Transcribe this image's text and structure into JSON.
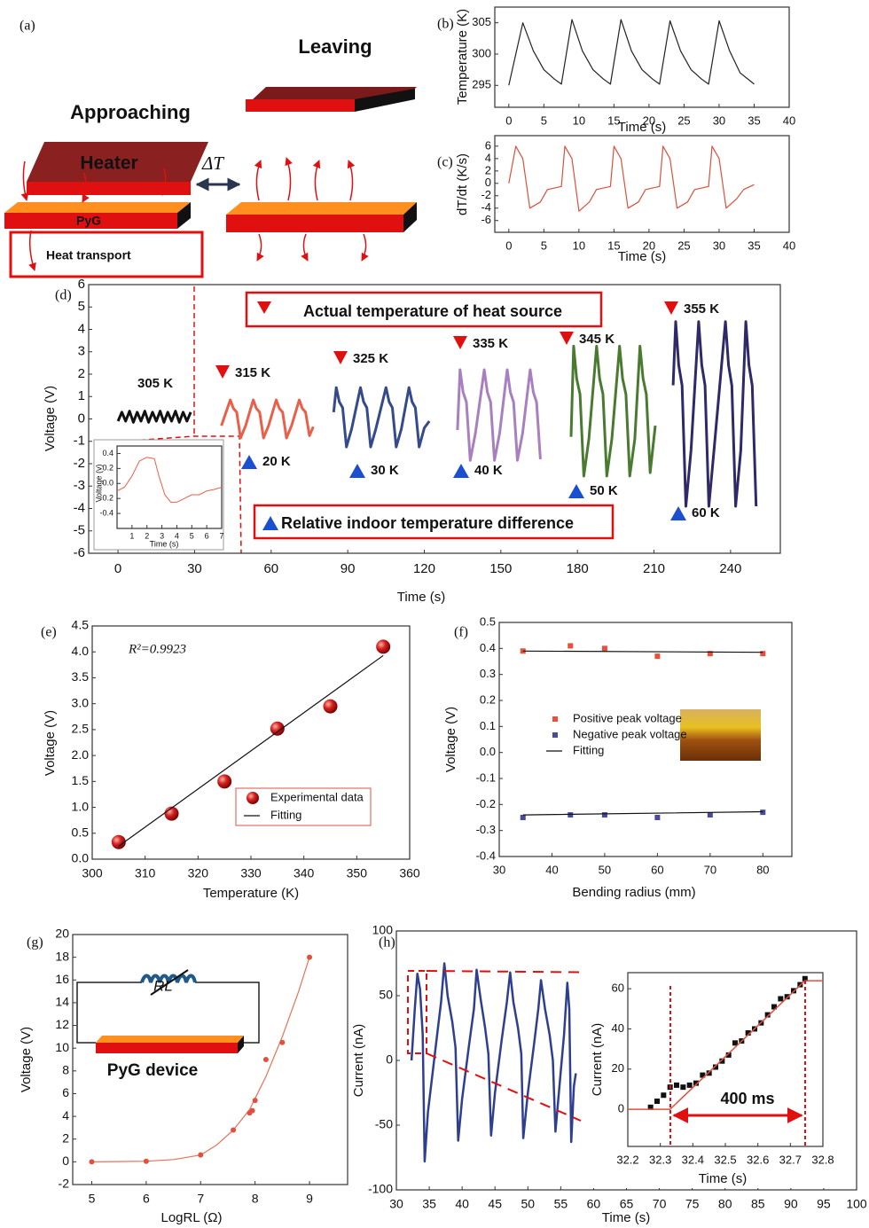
{
  "diagram": {
    "panel_label": "(a)",
    "labels": [
      "Leaving",
      "Approaching",
      "Heater",
      "ΔT",
      "PyG",
      "Heat transport"
    ]
  },
  "chart_data": [
    {
      "type": "line",
      "panel_label": "(b)",
      "x_label": "Time (s)",
      "y_label": "Temperature (K)",
      "xlim": [
        -2,
        40
      ],
      "ylim": [
        291.5,
        307.5
      ],
      "xticks": [
        0,
        5,
        10,
        15,
        20,
        25,
        30,
        35,
        40
      ],
      "yticks": [
        295,
        300,
        305
      ],
      "series": [
        {
          "color": "#222222",
          "style": "line",
          "x": [
            0,
            2,
            3.5,
            5,
            6.5,
            7.5,
            9,
            10.5,
            12,
            13.5,
            14.5,
            16,
            17.5,
            19,
            20.5,
            21.5,
            23,
            24.5,
            26,
            27.5,
            28.5,
            30,
            31.5,
            33,
            35
          ],
          "values": [
            295,
            305,
            300.5,
            297.5,
            296,
            295.2,
            305.5,
            300.5,
            297.5,
            296,
            295.2,
            305.5,
            300.5,
            297.5,
            296,
            295.2,
            305.3,
            300.5,
            297.5,
            296,
            295.2,
            305.3,
            300.5,
            297,
            295.2
          ]
        }
      ]
    },
    {
      "type": "line",
      "panel_label": "(c)",
      "x_label": "Time (s)",
      "y_label": "dT/dt (K/s)",
      "xlim": [
        -2,
        40
      ],
      "ylim": [
        -7.9,
        7.7
      ],
      "xticks": [
        0,
        5,
        10,
        15,
        20,
        25,
        30,
        35,
        40
      ],
      "yticks": [
        -6,
        -4,
        -2,
        0,
        2,
        4,
        6
      ],
      "series": [
        {
          "color": "#d9503c",
          "style": "line",
          "x": [
            0,
            1,
            2,
            3,
            4.5,
            5.5,
            7.5,
            8,
            9,
            10,
            11.5,
            12.5,
            14.5,
            15,
            16,
            17,
            18.5,
            19.5,
            21.5,
            22,
            23,
            24,
            25.5,
            26.5,
            28.5,
            29,
            30,
            31,
            32.5,
            33.5,
            35
          ],
          "values": [
            0,
            6,
            4,
            -4,
            -3,
            -1,
            -0.5,
            6,
            4,
            -4.5,
            -3,
            -1,
            -0.5,
            6,
            4,
            -4,
            -3,
            -1,
            -0.5,
            6,
            4,
            -4,
            -3,
            -1,
            -0.5,
            6,
            4,
            -4,
            -2.5,
            -1,
            -0.2
          ]
        }
      ]
    },
    {
      "type": "line",
      "panel_label": "(d)",
      "x_label": "Time (s)",
      "y_label": "Voltage (V)",
      "xlim": [
        -11.5,
        259.5
      ],
      "ylim": [
        -6,
        6
      ],
      "xticks": [
        0,
        30,
        60,
        90,
        120,
        150,
        180,
        210,
        240
      ],
      "yticks": [
        -6,
        -5,
        -4,
        -3,
        -2,
        -1,
        0,
        1,
        2,
        3,
        4,
        5,
        6
      ],
      "annotations": [
        "Actual temperature of heat source",
        "Relative indoor temperature difference",
        "20 K",
        "30 K",
        "40 K",
        "50 K",
        "60 K"
      ],
      "series": [
        {
          "name": "305 K",
          "color": "#111111",
          "style": "line",
          "x": [
            0,
            1.5,
            3,
            4.5,
            6,
            7.5,
            9,
            10.5,
            12,
            13.5,
            15,
            16.5,
            18,
            19.5,
            21,
            22.5,
            24,
            25.5,
            27,
            28.5
          ],
          "values": [
            -0.1,
            0.3,
            -0.1,
            0.35,
            -0.15,
            0.3,
            -0.1,
            0.35,
            -0.15,
            0.3,
            -0.1,
            0.35,
            -0.15,
            0.3,
            -0.1,
            0.35,
            -0.15,
            0.3,
            -0.1,
            0.3
          ]
        },
        {
          "name": "315 K",
          "color": "#e8604a",
          "style": "line",
          "x": [
            40.5,
            44,
            45.2,
            46.5,
            48,
            50,
            53,
            54.2,
            55.5,
            57,
            59,
            62,
            63.2,
            64.5,
            66,
            68,
            71,
            72.2,
            73.5,
            75,
            76.5
          ],
          "values": [
            -0.3,
            0.85,
            0.47,
            0.3,
            -0.85,
            -0.3,
            0.85,
            0.47,
            0.3,
            -0.85,
            -0.3,
            0.85,
            0.47,
            0.3,
            -0.85,
            -0.3,
            0.85,
            0.47,
            0.3,
            -0.75,
            -0.35
          ]
        },
        {
          "name": "325 K",
          "color": "#354a8a",
          "style": "line",
          "x": [
            84.5,
            85.5,
            86.7,
            88,
            89.5,
            91.5,
            95,
            96.2,
            97.5,
            99,
            101,
            105,
            106.2,
            107.5,
            109,
            111,
            114,
            115.2,
            116.5,
            118,
            120,
            122
          ],
          "values": [
            0.3,
            1.4,
            0.77,
            0.5,
            -1.25,
            -0.45,
            1.4,
            0.77,
            0.5,
            -1.25,
            -0.45,
            1.4,
            0.77,
            0.5,
            -1.25,
            -0.45,
            1.4,
            0.77,
            0.5,
            -1.25,
            -0.4,
            -0.1
          ]
        },
        {
          "name": "335 K",
          "color": "#a87fbf",
          "style": "line",
          "x": [
            133,
            134,
            135.2,
            136.5,
            138,
            140,
            143.5,
            144.7,
            146,
            147.5,
            149.5,
            152.5,
            153.7,
            155,
            156.5,
            158.5,
            161.5,
            162.7,
            164,
            165.5
          ],
          "values": [
            -0.5,
            2.2,
            1.2,
            0.75,
            -1.85,
            -0.65,
            2.2,
            1.2,
            0.75,
            -1.85,
            -0.65,
            2.2,
            1.2,
            0.75,
            -1.85,
            -0.65,
            2.2,
            1.2,
            0.75,
            -1.8
          ]
        },
        {
          "name": "345 K",
          "color": "#4a7a30",
          "style": "line",
          "x": [
            177.5,
            178.5,
            179.7,
            181,
            182.5,
            184.5,
            187.5,
            188.7,
            190,
            191.5,
            193.5,
            196.5,
            197.7,
            199,
            200.5,
            202.5,
            204.5,
            205.7,
            207,
            208.5,
            210.5
          ],
          "values": [
            -0.8,
            3.25,
            1.8,
            1.1,
            -2.55,
            -0.9,
            3.25,
            1.8,
            1.1,
            -2.55,
            -0.9,
            3.25,
            1.8,
            1.1,
            -2.55,
            -0.9,
            3.25,
            1.8,
            1.1,
            -2.4,
            -0.3
          ]
        },
        {
          "name": "355 K",
          "color": "#2e2a6a",
          "style": "line",
          "x": [
            217.5,
            218.5,
            219.7,
            221,
            222.5,
            224.5,
            227.5,
            228.7,
            230,
            231.5,
            233.5,
            238,
            239.2,
            240.5,
            242,
            244,
            246,
            247.2,
            248.5,
            250
          ],
          "values": [
            1.5,
            4.35,
            2.4,
            1.5,
            -3.9,
            -1.4,
            4.35,
            2.4,
            1.5,
            -3.9,
            -1.4,
            4.35,
            2.4,
            1.5,
            -3.9,
            -1.4,
            4.35,
            2.4,
            1.5,
            -3.9
          ]
        }
      ]
    },
    {
      "type": "line",
      "x_label": "Time (s)",
      "y_label": "Voltage (v)",
      "xlim": [
        0,
        7
      ],
      "ylim": [
        -0.6,
        0.5
      ],
      "xticks": [
        1,
        2,
        3,
        4,
        5,
        6,
        7
      ],
      "yticks": [
        0.4,
        0.2,
        {
          "value": 0,
          "label": "0.0"
        },
        -0.2,
        -0.4
      ],
      "series": [
        {
          "color": "#e8604a",
          "style": "line",
          "x": [
            0,
            0.5,
            1,
            1.5,
            2,
            2.5,
            2.8,
            3.2,
            3.6,
            4,
            4.5,
            5,
            5.5,
            6,
            6.5,
            7
          ],
          "values": [
            -0.1,
            -0.05,
            0.1,
            0.3,
            0.35,
            0.33,
            0.1,
            -0.15,
            -0.25,
            -0.25,
            -0.2,
            -0.15,
            -0.15,
            -0.1,
            -0.08,
            -0.05
          ]
        }
      ]
    },
    {
      "type": "scatter",
      "panel_label": "(e)",
      "x_label": "Temperature (K)",
      "y_label": "Voltage (V)",
      "xlim": [
        300,
        360
      ],
      "ylim": [
        0,
        4.5
      ],
      "xticks": [
        300,
        310,
        320,
        330,
        340,
        350,
        360
      ],
      "yticks": [
        {
          "value": 0,
          "label": "0.0"
        },
        0.5,
        {
          "value": 1,
          "label": "1.0"
        },
        1.5,
        {
          "value": 2,
          "label": "2.0"
        },
        2.5,
        {
          "value": 3,
          "label": "3.0"
        },
        3.5,
        {
          "value": 4,
          "label": "4.0"
        },
        4.5
      ],
      "legend": true,
      "annotations": [
        "R²=0.9923"
      ],
      "series": [
        {
          "name": "Experimental data",
          "color": "#d42020",
          "style": "sphere",
          "x": [
            305,
            315,
            325,
            335,
            345,
            355
          ],
          "values": [
            0.33,
            0.88,
            1.5,
            2.52,
            2.95,
            4.1
          ]
        },
        {
          "name": "Fitting",
          "color": "#111111",
          "style": "line",
          "x": [
            305,
            355
          ],
          "values": [
            0.25,
            3.93
          ]
        }
      ]
    },
    {
      "type": "scatter",
      "panel_label": "(f)",
      "x_label": "Bending radius (mm)",
      "y_label": "Voltage (V)",
      "xlim": [
        30,
        85.5
      ],
      "ylim": [
        -0.4,
        0.5
      ],
      "xticks": [
        30,
        40,
        50,
        60,
        70,
        80
      ],
      "yticks": [
        -0.4,
        -0.3,
        -0.2,
        -0.1,
        {
          "value": 0,
          "label": "0.0"
        },
        0.1,
        0.2,
        0.3,
        0.4,
        0.5
      ],
      "legend": true,
      "series": [
        {
          "name": "Positive peak voltage",
          "color": "#e8503a",
          "style": "square",
          "x": [
            34.5,
            43.5,
            50,
            60,
            70,
            80
          ],
          "values": [
            0.39,
            0.41,
            0.4,
            0.37,
            0.38,
            0.38
          ]
        },
        {
          "name": "Negative peak voltage",
          "color": "#4a4a9a",
          "style": "square",
          "x": [
            34.5,
            43.5,
            50,
            60,
            70,
            80
          ],
          "values": [
            -0.25,
            -0.24,
            -0.24,
            -0.25,
            -0.24,
            -0.23
          ]
        },
        {
          "name": "Fitting",
          "color": "#111111",
          "style": "line",
          "x": [
            34.5,
            80,
            null,
            34.5,
            80
          ],
          "values": [
            0.39,
            0.385,
            null,
            -0.24,
            -0.228
          ]
        }
      ]
    },
    {
      "type": "scatter",
      "panel_label": "(g)",
      "x_label": "LogRL (Ω)",
      "y_label": "Voltage (V)",
      "xlim": [
        4.65,
        9.7
      ],
      "ylim": [
        -2,
        20
      ],
      "xticks": [
        5,
        6,
        7,
        8,
        9
      ],
      "yticks": [
        -2,
        0,
        2,
        4,
        6,
        8,
        10,
        12,
        14,
        16,
        18,
        20
      ],
      "annotations": [
        "RL",
        "PyG device"
      ],
      "series": [
        {
          "color": "#e8705a",
          "style": "line",
          "x": [
            5,
            6,
            6.5,
            7,
            7.3,
            7.6,
            7.9,
            8.2,
            8.5,
            8.8,
            9
          ],
          "values": [
            0,
            0.05,
            0.2,
            0.6,
            1.5,
            2.8,
            4.6,
            7.5,
            11,
            15,
            18
          ]
        },
        {
          "color": "#e0503c",
          "style": "dot",
          "x": [
            5,
            6,
            7,
            7.6,
            7.9,
            7.95,
            8,
            8.2,
            8.5,
            9
          ],
          "values": [
            0,
            0.05,
            0.6,
            2.8,
            4.3,
            4.5,
            5.4,
            9,
            10.5,
            18
          ]
        }
      ]
    },
    {
      "type": "line",
      "panel_label": "(h)",
      "x_label": "Time (s)",
      "y_label": "Current (nA)",
      "xlim": [
        30,
        100
      ],
      "ylim": [
        -100,
        100
      ],
      "xticks": [
        30,
        35,
        40,
        45,
        50,
        55,
        60,
        65,
        70,
        75,
        80,
        85,
        90,
        95,
        100
      ],
      "yticks": [
        -100,
        -50,
        0,
        50,
        100
      ],
      "series": [
        {
          "color": "#2f3f8f",
          "style": "line",
          "x": [
            32.3,
            32.8,
            33.2,
            33.6,
            34,
            34.3,
            34.8,
            35.5,
            36.2,
            36.8,
            37.3,
            37.8,
            38.5,
            39,
            39.4,
            40,
            41,
            41.8,
            42.2,
            42.8,
            43.5,
            44,
            44.4,
            45,
            46,
            46.8,
            47.3,
            47.8,
            48.5,
            49,
            49.3,
            50,
            51,
            51.6,
            52,
            52.6,
            53.3,
            53.8,
            54.2,
            54.8,
            55.5,
            56,
            56.3,
            56.6,
            57,
            57.3
          ],
          "values": [
            0,
            40,
            67,
            55,
            20,
            -78,
            -40,
            -10,
            20,
            45,
            75,
            50,
            30,
            10,
            -62,
            -30,
            10,
            40,
            70,
            48,
            25,
            5,
            -58,
            -25,
            15,
            45,
            68,
            45,
            25,
            5,
            -60,
            -25,
            15,
            40,
            62,
            40,
            20,
            0,
            -55,
            -20,
            20,
            60,
            40,
            -63,
            -20,
            -10
          ]
        }
      ]
    },
    {
      "type": "scatter",
      "x_label": "Time (s)",
      "y_label": "Current (nA)",
      "xlim": [
        32.2,
        32.8
      ],
      "ylim": [
        -18.5,
        68
      ],
      "xticks": [
        32.2,
        32.3,
        32.4,
        32.5,
        32.6,
        32.7,
        32.8
      ],
      "yticks": [
        0,
        20,
        40,
        60
      ],
      "annotations": [
        "400 ms"
      ],
      "series": [
        {
          "color": "#111111",
          "style": "square",
          "x": [
            32.27,
            32.29,
            32.31,
            32.33,
            32.35,
            32.37,
            32.39,
            32.41,
            32.43,
            32.45,
            32.47,
            32.49,
            32.51,
            32.53,
            32.55,
            32.57,
            32.59,
            32.61,
            32.63,
            32.65,
            32.67,
            32.69,
            32.71,
            32.73,
            32.745
          ],
          "values": [
            1,
            4,
            7,
            11,
            12,
            11,
            12,
            13,
            17,
            18,
            21,
            24,
            27,
            33,
            34,
            38,
            40,
            43,
            47,
            51,
            55,
            56,
            59,
            62,
            65
          ]
        },
        {
          "color": "#e05040",
          "style": "line",
          "x": [
            32.2,
            32.33,
            32.745,
            32.8
          ],
          "values": [
            0,
            0,
            64,
            64
          ]
        }
      ]
    }
  ]
}
